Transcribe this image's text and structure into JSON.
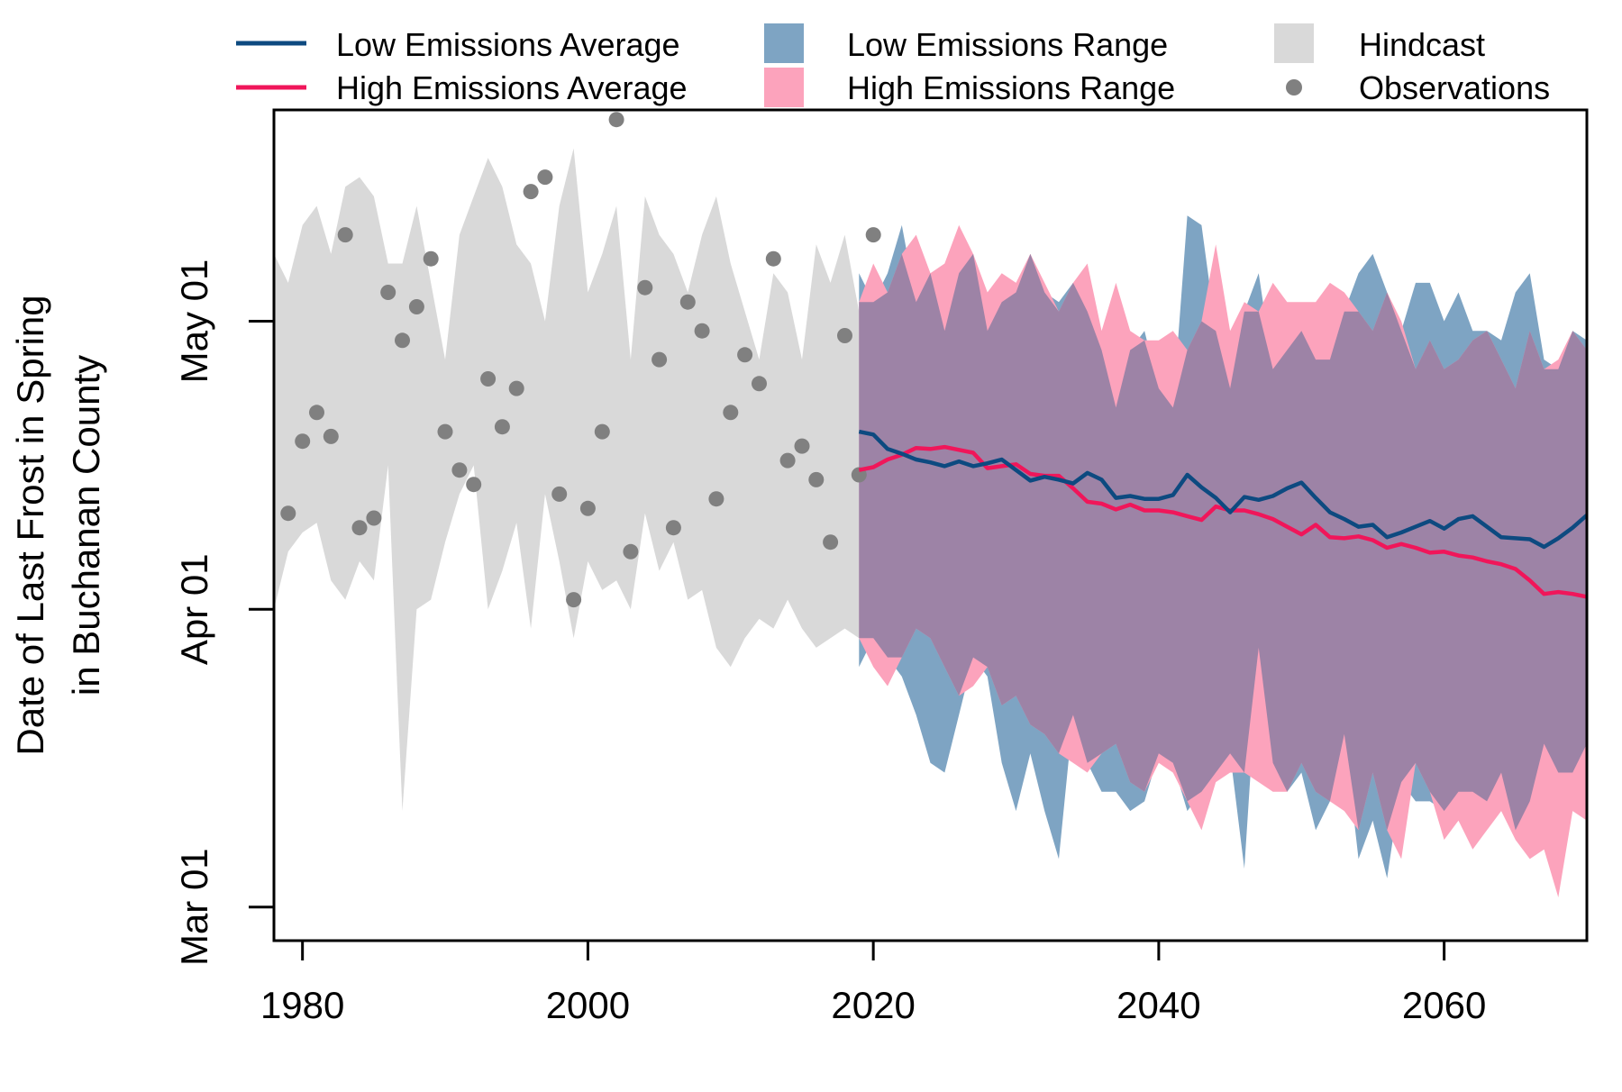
{
  "chart_data": {
    "type": "area",
    "ylabel_lines": [
      "Date of Last Frost in Spring",
      "in Buchanan County"
    ],
    "x_ticks": [
      1980,
      2000,
      2020,
      2040,
      2060
    ],
    "y_ticks": [
      {
        "label": "Mar 01",
        "value": 60
      },
      {
        "label": "Apr 01",
        "value": 91
      },
      {
        "label": "May 01",
        "value": 121
      }
    ],
    "xlim": [
      1978,
      2070
    ],
    "ylim": [
      56.5,
      143
    ],
    "legend": {
      "low_avg": "Low Emissions Average",
      "high_avg": "High Emissions Average",
      "low_range": "Low Emissions Range",
      "high_range": "High Emissions Range",
      "hindcast": "Hindcast",
      "observations": "Observations"
    },
    "colors": {
      "low_avg": "#0d4a80",
      "high_avg": "#f0165a",
      "low_range": "#7ea4c3",
      "high_range": "#fca3bc",
      "overlap": "#9d83a6",
      "hindcast": "#d9d9d9",
      "observations": "#808080"
    },
    "hindcast": {
      "x": [
        1978,
        1979,
        1980,
        1981,
        1982,
        1983,
        1984,
        1985,
        1986,
        1987,
        1988,
        1989,
        1990,
        1991,
        1992,
        1993,
        1994,
        1995,
        1996,
        1997,
        1998,
        1999,
        2000,
        2001,
        2002,
        2003,
        2004,
        2005,
        2006,
        2007,
        2008,
        2009,
        2010,
        2011,
        2012,
        2013,
        2014,
        2015,
        2016,
        2017,
        2018,
        2019
      ],
      "lower": [
        91,
        97,
        99,
        100,
        94,
        92,
        96,
        94,
        106,
        70,
        91,
        92,
        98,
        103,
        106,
        91,
        95,
        100,
        89,
        103,
        96,
        88,
        96,
        93,
        94,
        91,
        101,
        95,
        98,
        92,
        93,
        87,
        85,
        88,
        90,
        89,
        92,
        89,
        87,
        88,
        89,
        88
      ],
      "upper": [
        128,
        125,
        131,
        133,
        128,
        135,
        136,
        134,
        127,
        127,
        133,
        125,
        117,
        130,
        134,
        138,
        135,
        129,
        127,
        121,
        133,
        139,
        124,
        128,
        133,
        117,
        134,
        130,
        128,
        124,
        130,
        134,
        127,
        122,
        117,
        126,
        124,
        117,
        129,
        125,
        130,
        122
      ]
    },
    "observations": {
      "x": [
        1979,
        1980,
        1981,
        1982,
        1983,
        1984,
        1985,
        1986,
        1987,
        1988,
        1989,
        1990,
        1991,
        1992,
        1993,
        1994,
        1995,
        1996,
        1997,
        1998,
        1999,
        2000,
        2001,
        2002,
        2003,
        2004,
        2005,
        2006,
        2007,
        2008,
        2009,
        2010,
        2011,
        2012,
        2013,
        2014,
        2015,
        2016,
        2017,
        2018,
        2019,
        2020
      ],
      "y": [
        101,
        108.5,
        111.5,
        109,
        130,
        99.5,
        100.5,
        124,
        119,
        122.5,
        127.5,
        109.5,
        105.5,
        104,
        115,
        110,
        114,
        134.5,
        136,
        103,
        92,
        101.5,
        109.5,
        142,
        97,
        124.5,
        117,
        99.5,
        123,
        120,
        102.5,
        111.5,
        117.5,
        114.5,
        127.5,
        106.5,
        108,
        104.5,
        98,
        119.5,
        105,
        130
      ]
    },
    "projection_x": [
      2019,
      2020,
      2021,
      2022,
      2023,
      2024,
      2025,
      2026,
      2027,
      2028,
      2029,
      2030,
      2031,
      2032,
      2033,
      2034,
      2035,
      2036,
      2037,
      2038,
      2039,
      2040,
      2041,
      2042,
      2043,
      2044,
      2045,
      2046,
      2047,
      2048,
      2049,
      2050,
      2051,
      2052,
      2053,
      2054,
      2055,
      2056,
      2057,
      2058,
      2059,
      2060,
      2061,
      2062,
      2063,
      2064,
      2065,
      2066,
      2067,
      2068,
      2069,
      2070
    ],
    "low_emissions": {
      "average": [
        109.5,
        109.2,
        107.7,
        107.2,
        106.6,
        106.3,
        105.9,
        106.4,
        105.9,
        106.2,
        106.6,
        105.5,
        104.4,
        104.8,
        104.5,
        104.1,
        105.2,
        104.5,
        102.6,
        102.8,
        102.5,
        102.5,
        102.9,
        105,
        103.7,
        102.6,
        101.1,
        102.7,
        102.4,
        102.8,
        103.6,
        104.2,
        102.6,
        101.1,
        100.4,
        99.6,
        99.8,
        98.5,
        99,
        99.6,
        100.2,
        99.4,
        100.4,
        100.7,
        99.6,
        98.5,
        98.4,
        98.3,
        97.5,
        98.4,
        99.5,
        100.8
      ],
      "lower": [
        85,
        88,
        86,
        84,
        80,
        75,
        74,
        80,
        86,
        84,
        75,
        70,
        76,
        70,
        65,
        80,
        75,
        72,
        72,
        70,
        71,
        76,
        75,
        70,
        72,
        74,
        76,
        64,
        87,
        75,
        72,
        74,
        68,
        71,
        78,
        65,
        69,
        63,
        73,
        71,
        71,
        70,
        72,
        72,
        71,
        74,
        68,
        71,
        77,
        74,
        74,
        77
      ],
      "upper": [
        126,
        123,
        126,
        131,
        123,
        126,
        120,
        126,
        128,
        120,
        123,
        124,
        128,
        124,
        123,
        125,
        122,
        118,
        112,
        118,
        120,
        114,
        112,
        132,
        131,
        120,
        114,
        122,
        126,
        116,
        118,
        120,
        117,
        117,
        122,
        126,
        128,
        124,
        120,
        125,
        125,
        121,
        124,
        120,
        120,
        119,
        124,
        126,
        117,
        116,
        120,
        119
      ]
    },
    "high_emissions": {
      "average": [
        105.5,
        105.8,
        106.6,
        107.1,
        107.8,
        107.7,
        107.9,
        107.6,
        107.3,
        105.7,
        105.9,
        106.1,
        105.1,
        104.9,
        104.9,
        103.6,
        102.2,
        102,
        101.4,
        101.9,
        101.3,
        101.3,
        101.1,
        100.7,
        100.3,
        101.7,
        101.3,
        101.3,
        100.9,
        100.4,
        99.6,
        98.8,
        99.8,
        98.5,
        98.4,
        98.6,
        98.2,
        97.4,
        97.8,
        97.4,
        96.9,
        97,
        96.6,
        96.4,
        96,
        95.7,
        95.2,
        94,
        92.6,
        92.8,
        92.6,
        92.3
      ],
      "upper": [
        123,
        127,
        124,
        128,
        130,
        126,
        127,
        131,
        128,
        124,
        126,
        125,
        128,
        125,
        122,
        125,
        127,
        120,
        125,
        120,
        119,
        119,
        120,
        118,
        121,
        129,
        120,
        123,
        122,
        125,
        123,
        123,
        123,
        125,
        124,
        122,
        120,
        124,
        121,
        116,
        119,
        116,
        117,
        119,
        120,
        117,
        114,
        120,
        116,
        117,
        120,
        118
      ],
      "lower": [
        88,
        85,
        83,
        86,
        89,
        88,
        85,
        82,
        83,
        85,
        81,
        82,
        79,
        78,
        76,
        75,
        74,
        76,
        77,
        73,
        72,
        75,
        74,
        71,
        68,
        73,
        74,
        74,
        73,
        72,
        72,
        75,
        72,
        71,
        70,
        68,
        74,
        68,
        65,
        75,
        72,
        67,
        69,
        66,
        68,
        70,
        67,
        65,
        66,
        61,
        70,
        69
      ]
    }
  }
}
